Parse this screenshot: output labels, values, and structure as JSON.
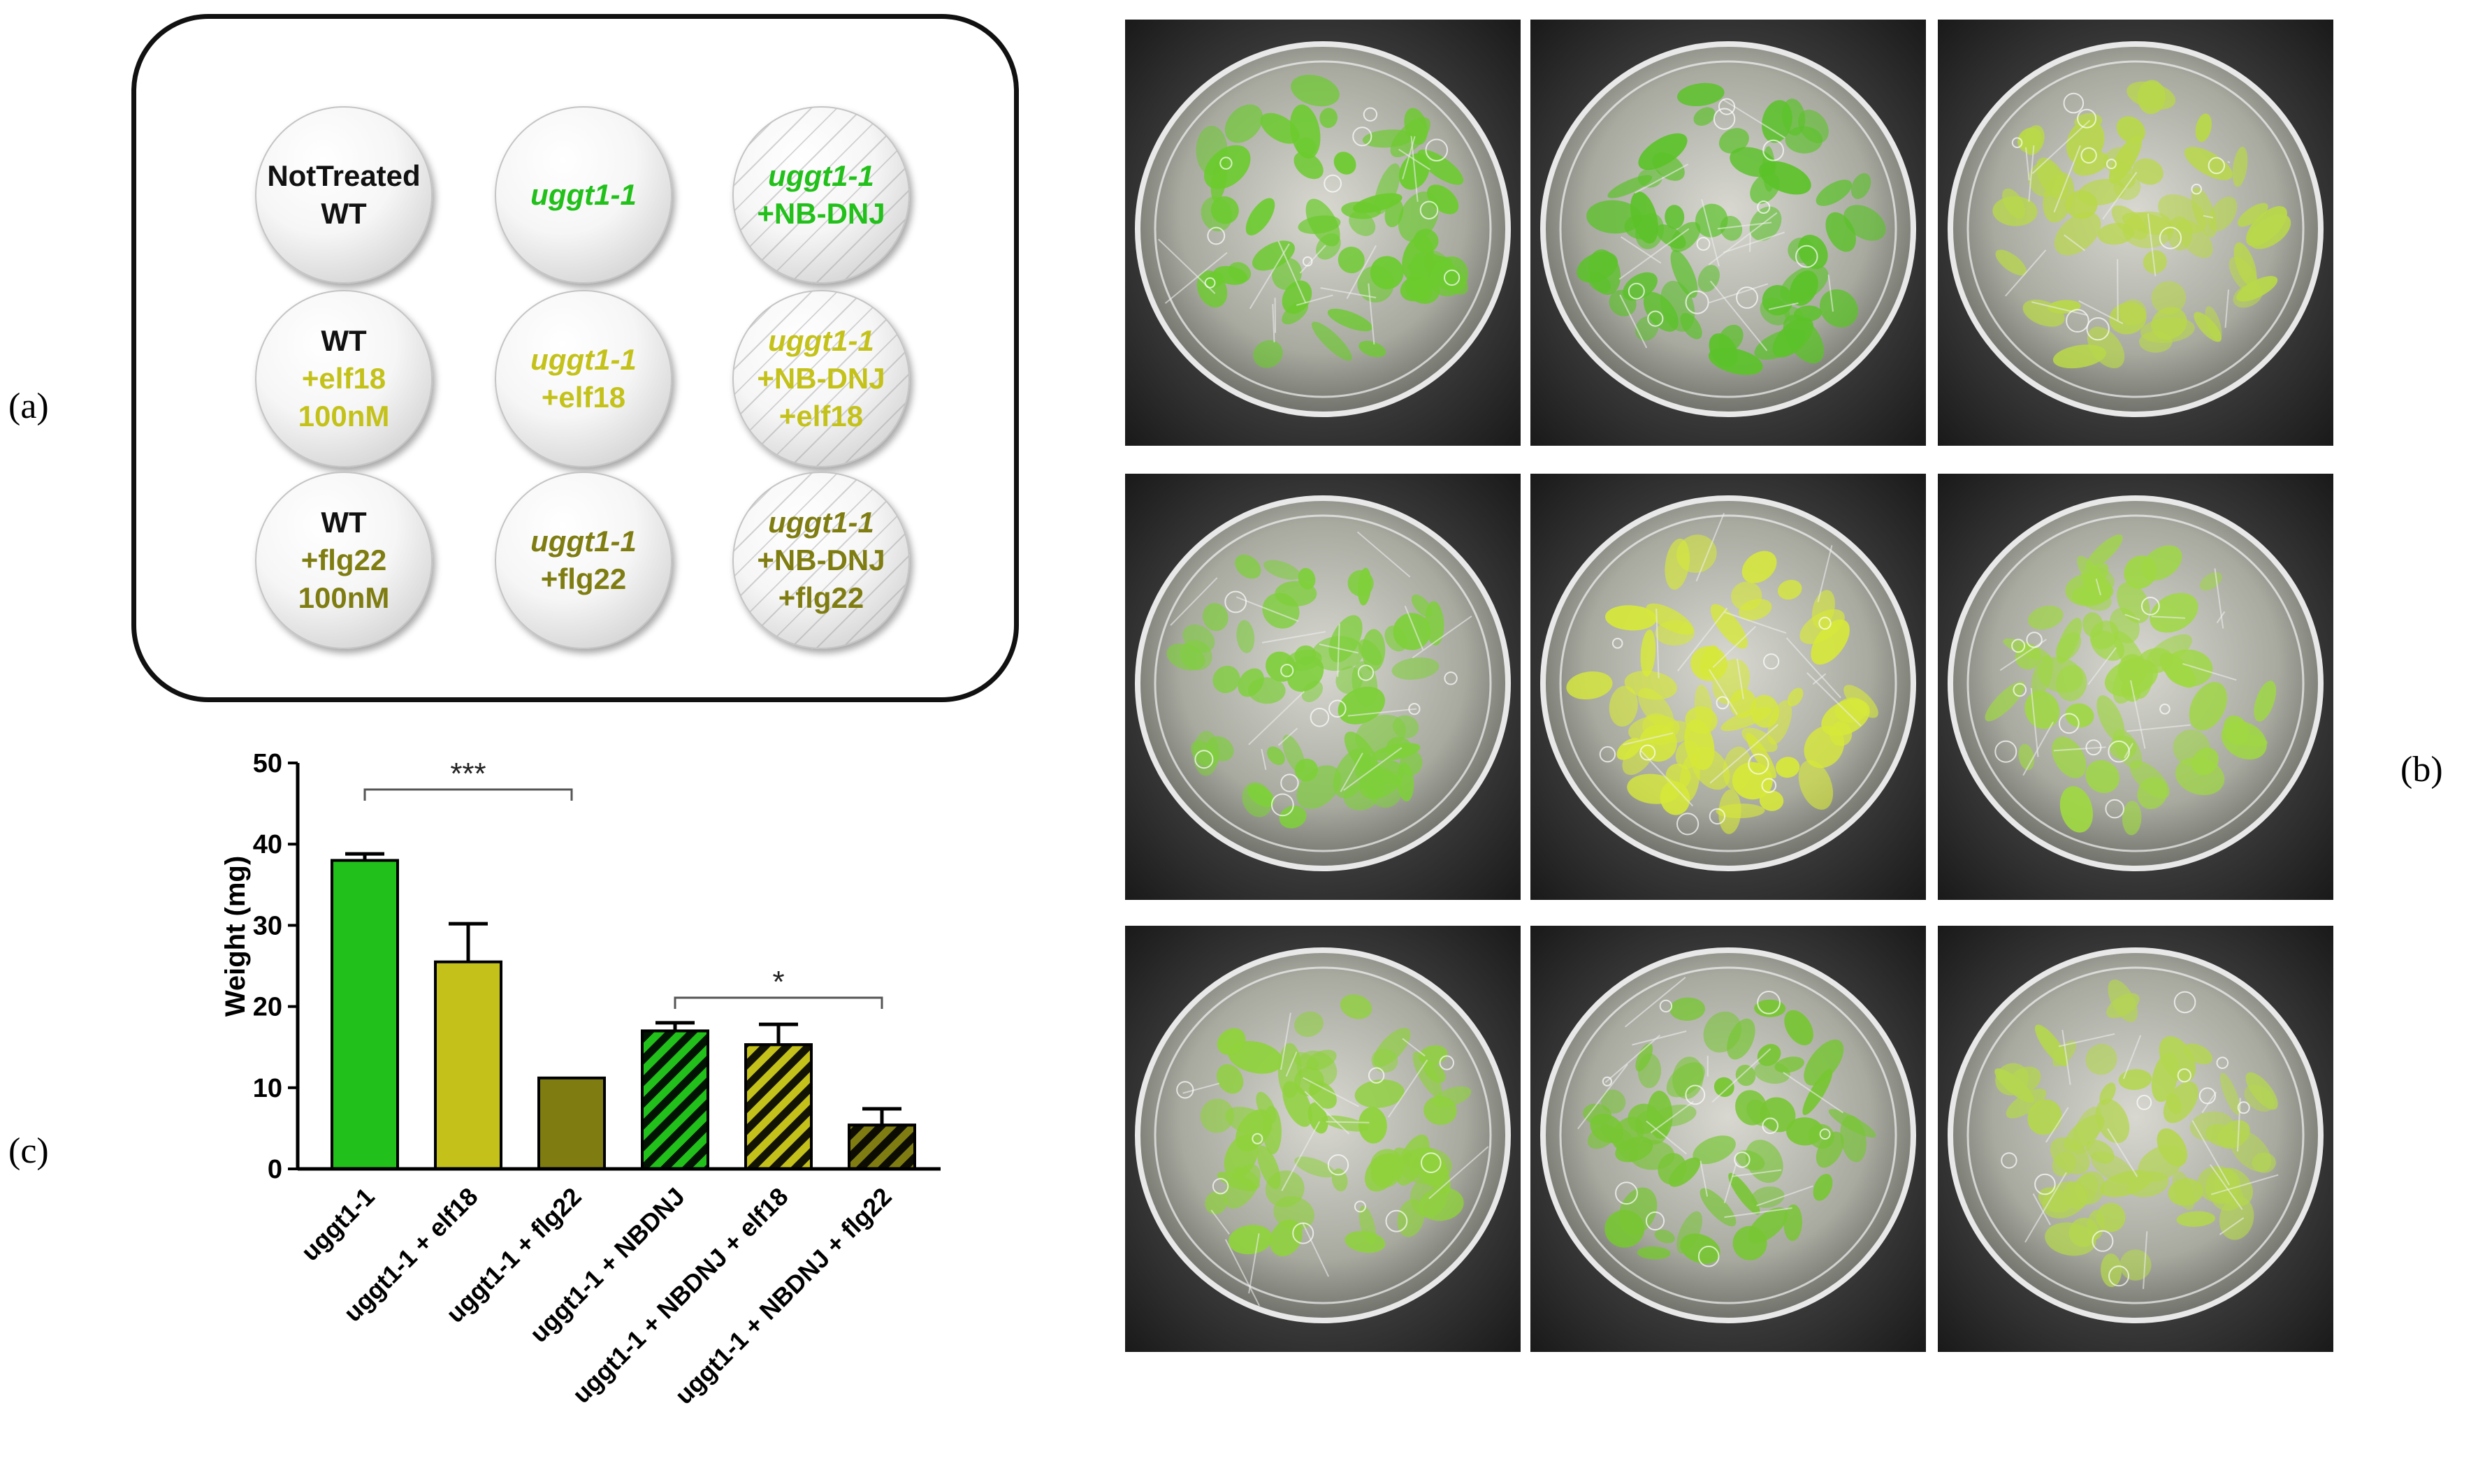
{
  "panel_labels": {
    "a": "(a)",
    "b": "(b)",
    "c": "(c)"
  },
  "legend": {
    "rows": [
      [
        {
          "lines": [
            {
              "text": "NotTreated",
              "color": "#111111"
            },
            {
              "text": "WT",
              "color": "#111111"
            }
          ],
          "hatched": false
        },
        {
          "lines": [
            {
              "text": "uggt1-1",
              "color": "#22c01a",
              "italic": true
            }
          ],
          "hatched": false
        },
        {
          "lines": [
            {
              "text": "uggt1-1",
              "color": "#22c01a",
              "italic": true
            },
            {
              "text": "+NB-DNJ",
              "color": "#22c01a"
            }
          ],
          "hatched": true
        }
      ],
      [
        {
          "lines": [
            {
              "text": "WT",
              "color": "#111111"
            },
            {
              "text": "+elf18",
              "color": "#c4c21a"
            },
            {
              "text": "100nM",
              "color": "#c4c21a"
            }
          ],
          "hatched": false
        },
        {
          "lines": [
            {
              "text": "uggt1-1",
              "color": "#c4c21a",
              "italic": true
            },
            {
              "text": "+elf18",
              "color": "#c4c21a"
            }
          ],
          "hatched": false
        },
        {
          "lines": [
            {
              "text": "uggt1-1",
              "color": "#c4c21a",
              "italic": true
            },
            {
              "text": "+NB-DNJ",
              "color": "#c4c21a"
            },
            {
              "text": "+elf18",
              "color": "#c4c21a"
            }
          ],
          "hatched": true
        }
      ],
      [
        {
          "lines": [
            {
              "text": "WT",
              "color": "#111111"
            },
            {
              "text": "+flg22",
              "color": "#7f7d12"
            },
            {
              "text": "100nM",
              "color": "#7f7d12"
            }
          ],
          "hatched": false
        },
        {
          "lines": [
            {
              "text": "uggt1-1",
              "color": "#7f7d12",
              "italic": true
            },
            {
              "text": "+flg22",
              "color": "#7f7d12"
            }
          ],
          "hatched": false
        },
        {
          "lines": [
            {
              "text": "uggt1-1",
              "color": "#7f7d12",
              "italic": true
            },
            {
              "text": "+NB-DNJ",
              "color": "#7f7d12"
            },
            {
              "text": "+flg22",
              "color": "#7f7d12"
            }
          ],
          "hatched": true
        }
      ]
    ]
  },
  "photos": [
    {
      "tint": "#6ccb2e"
    },
    {
      "tint": "#5cc22a"
    },
    {
      "tint": "#b9d84a"
    },
    {
      "tint": "#7ed03a"
    },
    {
      "tint": "#d6e83a"
    },
    {
      "tint": "#9fd843"
    },
    {
      "tint": "#8fd23c"
    },
    {
      "tint": "#78c634"
    },
    {
      "tint": "#b4d650"
    }
  ],
  "chart_data": {
    "type": "bar",
    "title": "",
    "xlabel": "",
    "ylabel": "Weight (mg)",
    "ylim": [
      0,
      50
    ],
    "yticks": [
      "0",
      "10",
      "20",
      "30",
      "40",
      "50"
    ],
    "categories": [
      "uggt1-1",
      "uggt1-1 + elf18",
      "uggt1-1 + flg22",
      "uggt1-1 + NBDNJ",
      "uggt1-1 + NBDNJ + elf18",
      "uggt1-1 + NBDNJ + flg22"
    ],
    "values": [
      38,
      25.5,
      11.2,
      17,
      15.3,
      5.4
    ],
    "errors": [
      0.8,
      4.7,
      0,
      1,
      2.5,
      2
    ],
    "colors": [
      "#22c01a",
      "#c4c21a",
      "#7f7d12",
      "#22c01a",
      "#c4c21a",
      "#7f7d12"
    ],
    "hatched": [
      false,
      false,
      false,
      true,
      true,
      true
    ],
    "significance": [
      {
        "from": 0,
        "to": 2,
        "label": "***"
      },
      {
        "from": 3,
        "to": 5,
        "label": "*"
      }
    ]
  }
}
